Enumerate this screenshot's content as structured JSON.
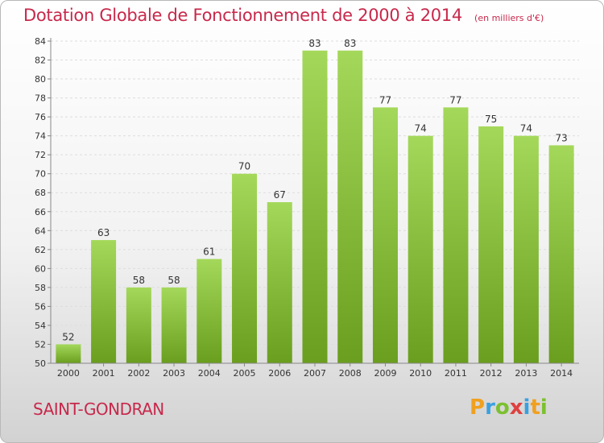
{
  "header": {
    "title": "Dotation Globale de Fonctionnement de 2000 à 2014",
    "subtitle": "(en milliers d'€)"
  },
  "commune": "SAINT-GONDRAN",
  "logo": {
    "letters": [
      "P",
      "r",
      "o",
      "x",
      "i",
      "t",
      "i"
    ],
    "colors": [
      "#f0a020",
      "#3aa0e0",
      "#7cc030",
      "#e04040",
      "#3aa0e0",
      "#f0a020",
      "#7cc030"
    ]
  },
  "colors": {
    "bar_light": "#a4d85a",
    "bar_dark": "#6a9e1e",
    "title": "#c8284b"
  },
  "chart_data": {
    "type": "bar",
    "categories": [
      "2000",
      "2001",
      "2002",
      "2003",
      "2004",
      "2005",
      "2006",
      "2007",
      "2008",
      "2009",
      "2010",
      "2011",
      "2012",
      "2013",
      "2014"
    ],
    "values": [
      52,
      63,
      58,
      58,
      61,
      70,
      67,
      83,
      83,
      77,
      74,
      77,
      75,
      74,
      73
    ],
    "ylim": [
      50,
      84
    ],
    "yticks": [
      50,
      52,
      54,
      56,
      58,
      60,
      62,
      64,
      66,
      68,
      70,
      72,
      74,
      76,
      78,
      80,
      82,
      84
    ],
    "grid": true
  }
}
